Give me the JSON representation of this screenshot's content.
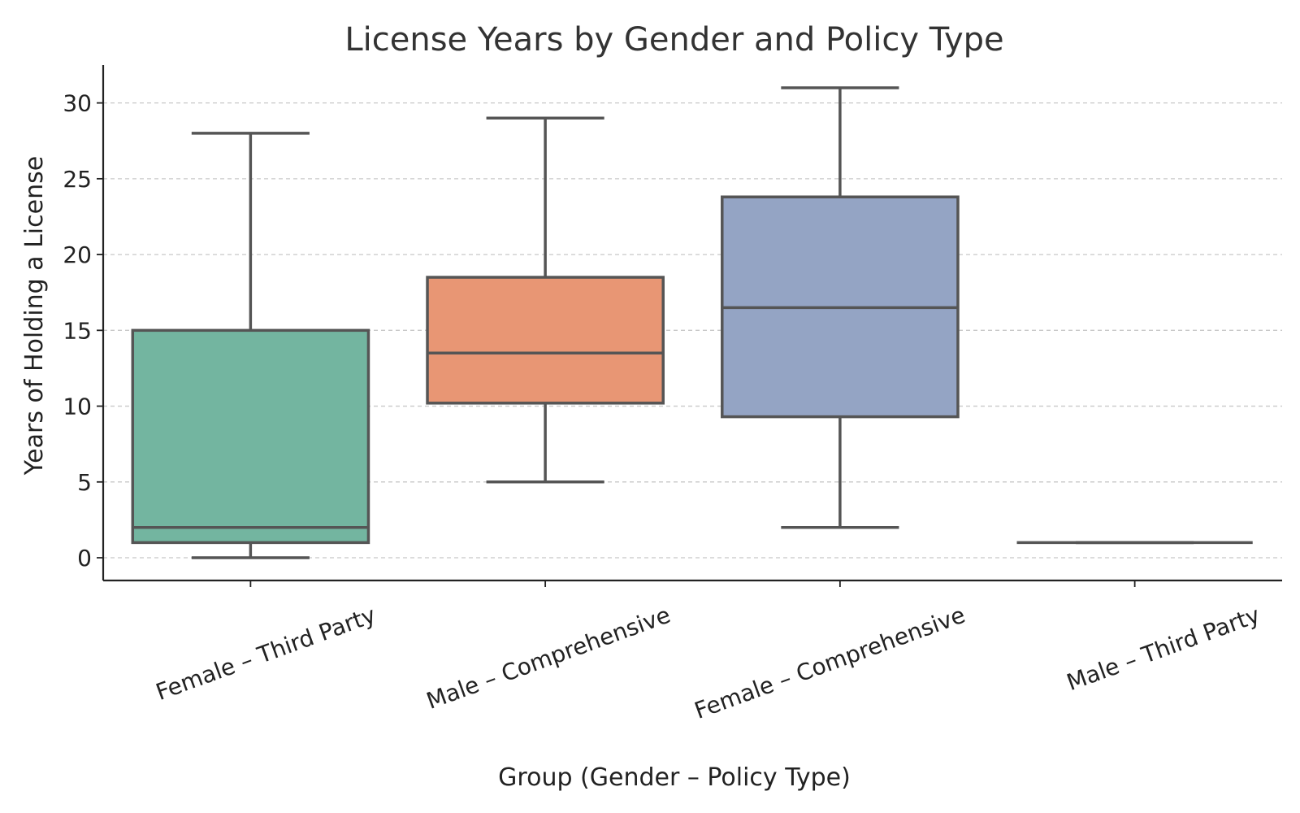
{
  "chart_data": {
    "type": "box",
    "title": "License Years by Gender and Policy Type",
    "xlabel": "Group (Gender – Policy Type)",
    "ylabel": "Years of Holding a License",
    "ylim": [
      -1.5,
      32.5
    ],
    "yticks": [
      0,
      5,
      10,
      15,
      20,
      25,
      30
    ],
    "grid": "y-dashed",
    "categories": [
      "Female – Third Party",
      "Male – Comprehensive",
      "Female – Comprehensive",
      "Male – Third Party"
    ],
    "boxes": [
      {
        "whisker_low": 0,
        "q1": 1,
        "median": 2,
        "q3": 15,
        "whisker_high": 28,
        "color": "#73b5a0"
      },
      {
        "whisker_low": 5,
        "q1": 10.2,
        "median": 13.5,
        "q3": 18.5,
        "whisker_high": 29,
        "color": "#e89674"
      },
      {
        "whisker_low": 2,
        "q1": 9.3,
        "median": 16.5,
        "q3": 23.8,
        "whisker_high": 31,
        "color": "#94a4c4"
      },
      {
        "whisker_low": 1,
        "q1": 1,
        "median": 1,
        "q3": 1,
        "whisker_high": 1,
        "color": "#e38fc0"
      }
    ]
  }
}
